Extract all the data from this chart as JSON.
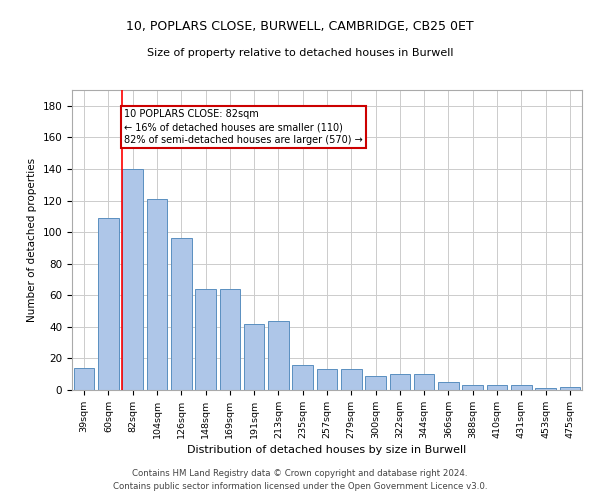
{
  "title_line1": "10, POPLARS CLOSE, BURWELL, CAMBRIDGE, CB25 0ET",
  "title_line2": "Size of property relative to detached houses in Burwell",
  "xlabel": "Distribution of detached houses by size in Burwell",
  "ylabel": "Number of detached properties",
  "categories": [
    "39sqm",
    "60sqm",
    "82sqm",
    "104sqm",
    "126sqm",
    "148sqm",
    "169sqm",
    "191sqm",
    "213sqm",
    "235sqm",
    "257sqm",
    "279sqm",
    "300sqm",
    "322sqm",
    "344sqm",
    "366sqm",
    "388sqm",
    "410sqm",
    "431sqm",
    "453sqm",
    "475sqm"
  ],
  "values": [
    14,
    109,
    140,
    121,
    96,
    64,
    64,
    42,
    44,
    16,
    13,
    13,
    9,
    10,
    10,
    5,
    3,
    3,
    3,
    1,
    2
  ],
  "bar_color": "#aec6e8",
  "bar_edge_color": "#5a8fc0",
  "red_line_x": 2,
  "annotation_text": "10 POPLARS CLOSE: 82sqm\n← 16% of detached houses are smaller (110)\n82% of semi-detached houses are larger (570) →",
  "annotation_box_color": "#ffffff",
  "annotation_box_edge_color": "#cc0000",
  "ylim": [
    0,
    190
  ],
  "yticks": [
    0,
    20,
    40,
    60,
    80,
    100,
    120,
    140,
    160,
    180
  ],
  "background_color": "#ffffff",
  "grid_color": "#cccccc",
  "footer_line1": "Contains HM Land Registry data © Crown copyright and database right 2024.",
  "footer_line2": "Contains public sector information licensed under the Open Government Licence v3.0."
}
